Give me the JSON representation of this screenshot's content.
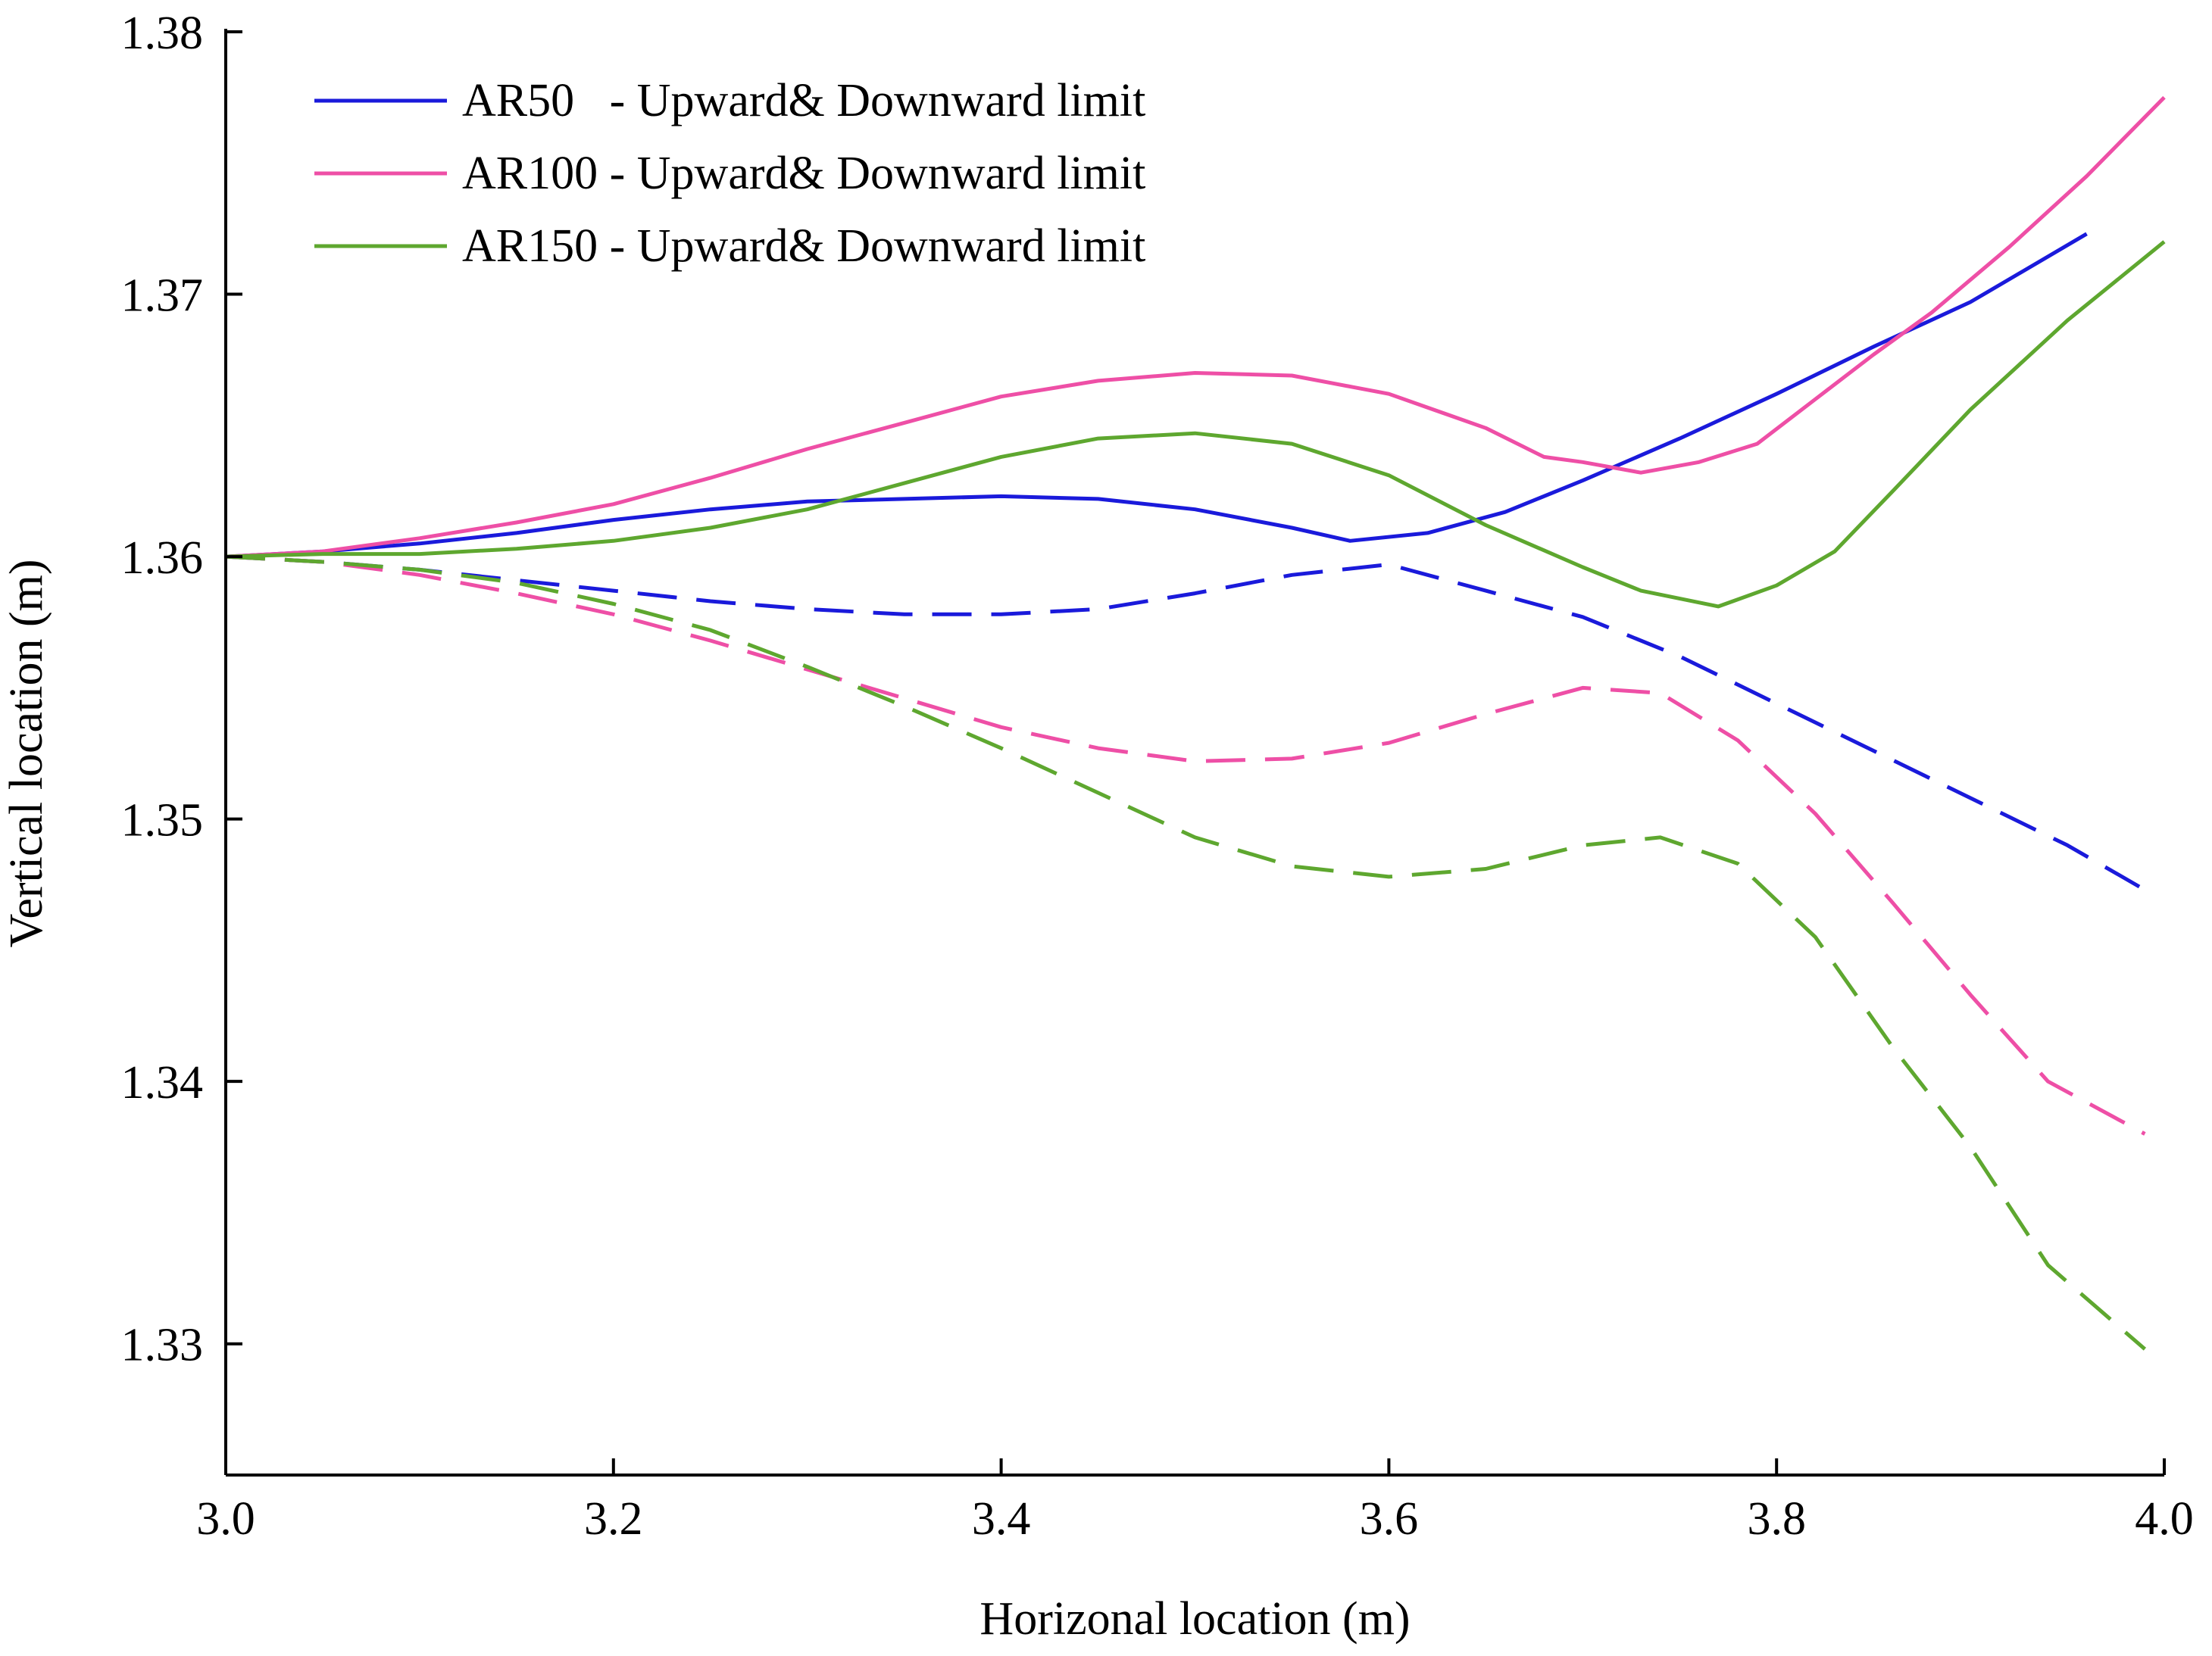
{
  "chart_data": {
    "type": "line",
    "title": "",
    "xlabel": "Horizonal location (m)",
    "ylabel": "Vertical location (m)",
    "xlim": [
      3.0,
      4.0
    ],
    "ylim": [
      1.325,
      1.38
    ],
    "xticks": [
      3.0,
      3.2,
      3.4,
      3.6,
      3.8,
      4.0
    ],
    "xtick_labels": [
      "3.0",
      "3.2",
      "3.4",
      "3.6",
      "3.8",
      "4.0"
    ],
    "yticks": [
      1.33,
      1.34,
      1.35,
      1.36,
      1.37,
      1.38
    ],
    "ytick_labels": [
      "1.33",
      "1.34",
      "1.35",
      "1.36",
      "1.37",
      "1.38"
    ],
    "grid": false,
    "legend_position": "top-left",
    "legend": [
      {
        "label": "AR50   - Upward& Downward limit",
        "color": "#1a1adb"
      },
      {
        "label": "AR100 - Upward& Downward limit",
        "color": "#ee4fa6"
      },
      {
        "label": "AR150 - Upward& Downward limit",
        "color": "#5ea72f"
      }
    ],
    "series": [
      {
        "name": "AR50 Upward limit",
        "group": "AR50",
        "style": "solid",
        "color": "#1a1adb",
        "x": [
          3.0,
          3.05,
          3.1,
          3.15,
          3.2,
          3.25,
          3.3,
          3.35,
          3.4,
          3.45,
          3.5,
          3.55,
          3.58,
          3.62,
          3.66,
          3.7,
          3.75,
          3.8,
          3.85,
          3.9,
          3.96
        ],
        "y": [
          1.36,
          1.3602,
          1.3605,
          1.3609,
          1.3614,
          1.3618,
          1.3621,
          1.3622,
          1.3623,
          1.3622,
          1.3618,
          1.3611,
          1.3606,
          1.3609,
          1.3617,
          1.3629,
          1.3645,
          1.3662,
          1.368,
          1.3697,
          1.3723
        ]
      },
      {
        "name": "AR50 Downward limit",
        "group": "AR50",
        "style": "dashed",
        "color": "#1a1adb",
        "x": [
          3.0,
          3.05,
          3.1,
          3.15,
          3.2,
          3.25,
          3.3,
          3.35,
          3.4,
          3.45,
          3.5,
          3.55,
          3.6,
          3.65,
          3.7,
          3.75,
          3.8,
          3.85,
          3.9,
          3.95,
          3.99
        ],
        "y": [
          1.36,
          1.3598,
          1.3595,
          1.3591,
          1.3587,
          1.3583,
          1.358,
          1.3578,
          1.3578,
          1.358,
          1.3586,
          1.3593,
          1.3597,
          1.3587,
          1.3577,
          1.3562,
          1.3544,
          1.3526,
          1.3508,
          1.349,
          1.3473
        ]
      },
      {
        "name": "AR100 Upward limit",
        "group": "AR100",
        "style": "solid",
        "color": "#ee4fa6",
        "x": [
          3.0,
          3.05,
          3.1,
          3.15,
          3.2,
          3.25,
          3.3,
          3.35,
          3.4,
          3.45,
          3.5,
          3.55,
          3.6,
          3.65,
          3.68,
          3.7,
          3.73,
          3.76,
          3.79,
          3.82,
          3.85,
          3.88,
          3.92,
          3.96,
          4.0
        ],
        "y": [
          1.36,
          1.3602,
          1.3607,
          1.3613,
          1.362,
          1.363,
          1.3641,
          1.3651,
          1.3661,
          1.3667,
          1.367,
          1.3669,
          1.3662,
          1.3649,
          1.3638,
          1.3636,
          1.3632,
          1.3636,
          1.3643,
          1.366,
          1.3677,
          1.3693,
          1.3718,
          1.3745,
          1.3775
        ]
      },
      {
        "name": "AR100 Downward limit",
        "group": "AR100",
        "style": "dashed",
        "color": "#ee4fa6",
        "x": [
          3.0,
          3.05,
          3.1,
          3.15,
          3.2,
          3.25,
          3.3,
          3.35,
          3.4,
          3.45,
          3.5,
          3.55,
          3.6,
          3.65,
          3.7,
          3.74,
          3.78,
          3.82,
          3.86,
          3.9,
          3.94,
          3.99
        ],
        "y": [
          1.36,
          1.3598,
          1.3593,
          1.3586,
          1.3578,
          1.3568,
          1.3557,
          1.3546,
          1.3535,
          1.3527,
          1.3522,
          1.3523,
          1.3529,
          1.354,
          1.355,
          1.3548,
          1.353,
          1.3502,
          1.3468,
          1.3433,
          1.34,
          1.338
        ]
      },
      {
        "name": "AR150 Upward limit",
        "group": "AR150",
        "style": "solid",
        "color": "#5ea72f",
        "x": [
          3.0,
          3.05,
          3.1,
          3.15,
          3.2,
          3.25,
          3.3,
          3.35,
          3.4,
          3.45,
          3.5,
          3.55,
          3.6,
          3.65,
          3.7,
          3.73,
          3.77,
          3.8,
          3.83,
          3.86,
          3.9,
          3.95,
          4.0
        ],
        "y": [
          1.36,
          1.3601,
          1.3601,
          1.3603,
          1.3606,
          1.3611,
          1.3618,
          1.3628,
          1.3638,
          1.3645,
          1.3647,
          1.3643,
          1.3631,
          1.3612,
          1.3596,
          1.3587,
          1.3581,
          1.3589,
          1.3602,
          1.3625,
          1.3656,
          1.369,
          1.372
        ]
      },
      {
        "name": "AR150 Downward limit",
        "group": "AR150",
        "style": "dashed",
        "color": "#5ea72f",
        "x": [
          3.0,
          3.05,
          3.1,
          3.15,
          3.2,
          3.25,
          3.3,
          3.35,
          3.4,
          3.45,
          3.5,
          3.55,
          3.6,
          3.65,
          3.7,
          3.74,
          3.78,
          3.82,
          3.86,
          3.9,
          3.94,
          3.99
        ],
        "y": [
          1.36,
          1.3598,
          1.3595,
          1.359,
          1.3582,
          1.3572,
          1.3558,
          1.3543,
          1.3527,
          1.351,
          1.3493,
          1.3482,
          1.3478,
          1.3481,
          1.349,
          1.3493,
          1.3483,
          1.3455,
          1.3413,
          1.3375,
          1.333,
          1.3298
        ]
      }
    ]
  }
}
